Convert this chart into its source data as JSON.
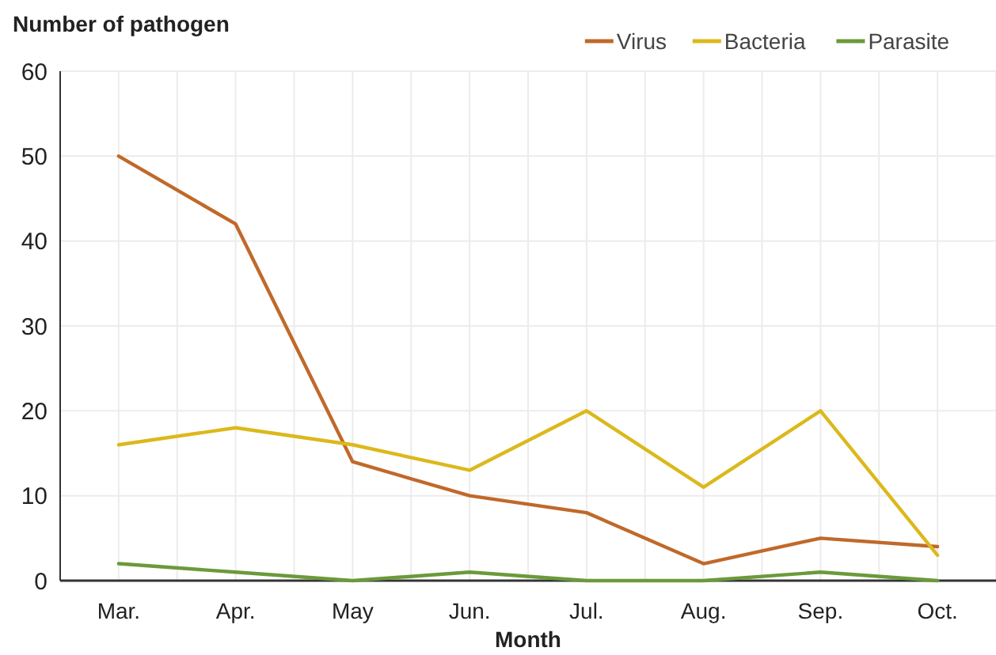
{
  "chart_data": {
    "type": "line",
    "ylabel": "Number of pathogen",
    "xlabel": "Month",
    "categories": [
      "Mar.",
      "Apr.",
      "May",
      "Jun.",
      "Jul.",
      "Aug.",
      "Sep.",
      "Oct."
    ],
    "series": [
      {
        "name": "Virus",
        "color": "#c0692a",
        "values": [
          50,
          42,
          14,
          10,
          8,
          2,
          5,
          4
        ]
      },
      {
        "name": "Bacteria",
        "color": "#dcb81c",
        "values": [
          16,
          18,
          16,
          13,
          20,
          11,
          20,
          3
        ]
      },
      {
        "name": "Parasite",
        "color": "#6a9a3a",
        "values": [
          2,
          1,
          0,
          1,
          0,
          0,
          1,
          0
        ]
      }
    ],
    "ylim": [
      0,
      60
    ],
    "yticks": [
      0,
      10,
      20,
      30,
      40,
      50,
      60
    ],
    "grid": true,
    "legend": "top right",
    "marker": "none",
    "line_style": "solid"
  }
}
